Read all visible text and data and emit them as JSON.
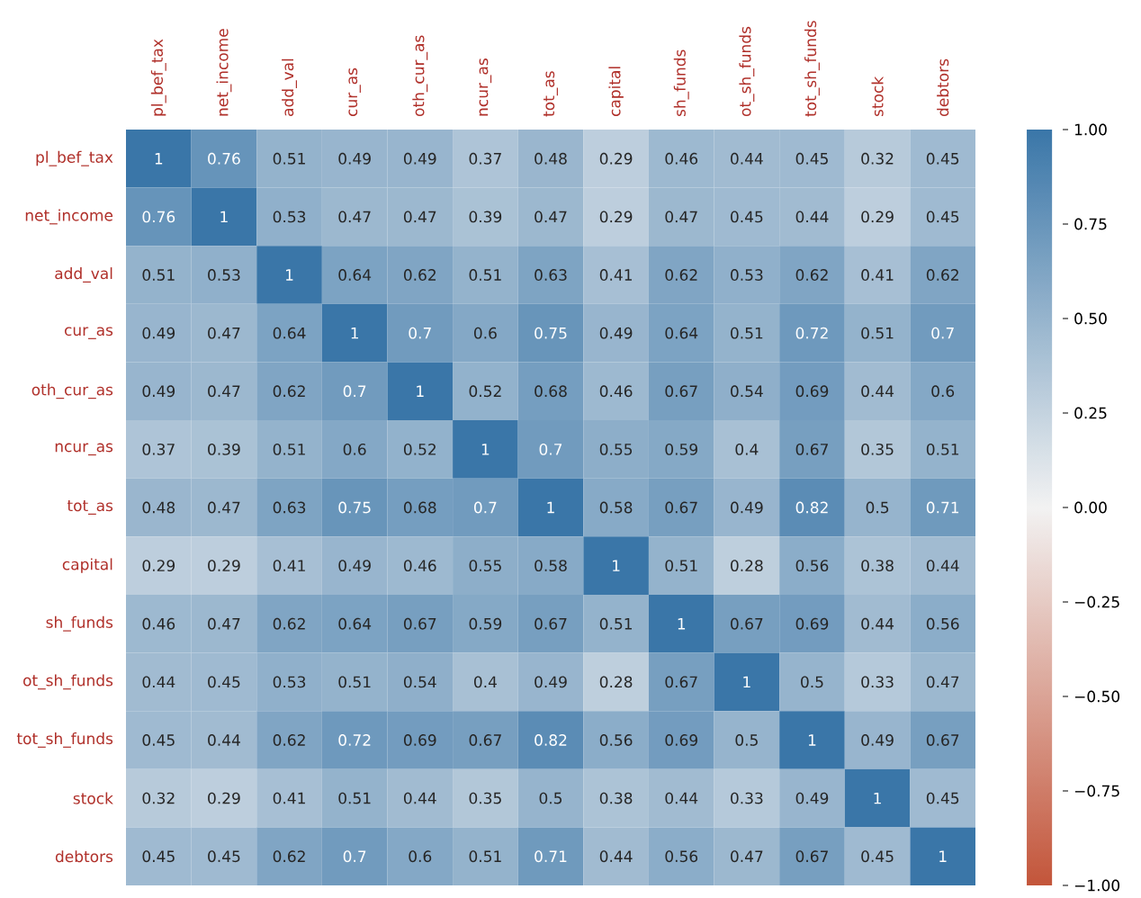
{
  "chart_data": {
    "type": "heatmap",
    "categories": [
      "pl_bef_tax",
      "net_income",
      "add_val",
      "cur_as",
      "oth_cur_as",
      "ncur_as",
      "tot_as",
      "capital",
      "sh_funds",
      "ot_sh_funds",
      "tot_sh_funds",
      "stock",
      "debtors"
    ],
    "y_categories": [
      "pl_bef_tax",
      "net_income",
      "add_val",
      "cur_as",
      "oth_cur_as",
      "ncur_as",
      "tot_as",
      "capital",
      "sh_funds",
      "ot_sh_funds",
      "tot_sh_funds",
      "stock",
      "debtors"
    ],
    "cells": [
      [
        1,
        0.76,
        0.51,
        0.49,
        0.49,
        0.37,
        0.48,
        0.29,
        0.46,
        0.44,
        0.45,
        0.32,
        0.45
      ],
      [
        0.76,
        1,
        0.53,
        0.47,
        0.47,
        0.39,
        0.47,
        0.29,
        0.47,
        0.45,
        0.44,
        0.29,
        0.45
      ],
      [
        0.51,
        0.53,
        1,
        0.64,
        0.62,
        0.51,
        0.63,
        0.41,
        0.62,
        0.53,
        0.62,
        0.41,
        0.62
      ],
      [
        0.49,
        0.47,
        0.64,
        1,
        0.7,
        0.6,
        0.75,
        0.49,
        0.64,
        0.51,
        0.72,
        0.51,
        0.7
      ],
      [
        0.49,
        0.47,
        0.62,
        0.7,
        1,
        0.52,
        0.68,
        0.46,
        0.67,
        0.54,
        0.69,
        0.44,
        0.6
      ],
      [
        0.37,
        0.39,
        0.51,
        0.6,
        0.52,
        1,
        0.7,
        0.55,
        0.59,
        0.4,
        0.67,
        0.35,
        0.51
      ],
      [
        0.48,
        0.47,
        0.63,
        0.75,
        0.68,
        0.7,
        1,
        0.58,
        0.67,
        0.49,
        0.82,
        0.5,
        0.71
      ],
      [
        0.29,
        0.29,
        0.41,
        0.49,
        0.46,
        0.55,
        0.58,
        1,
        0.51,
        0.28,
        0.56,
        0.38,
        0.44
      ],
      [
        0.46,
        0.47,
        0.62,
        0.64,
        0.67,
        0.59,
        0.67,
        0.51,
        1,
        0.67,
        0.69,
        0.44,
        0.56
      ],
      [
        0.44,
        0.45,
        0.53,
        0.51,
        0.54,
        0.4,
        0.49,
        0.28,
        0.67,
        1,
        0.5,
        0.33,
        0.47
      ],
      [
        0.45,
        0.44,
        0.62,
        0.72,
        0.69,
        0.67,
        0.82,
        0.56,
        0.69,
        0.5,
        1,
        0.49,
        0.67
      ],
      [
        0.32,
        0.29,
        0.41,
        0.51,
        0.44,
        0.35,
        0.5,
        0.38,
        0.44,
        0.33,
        0.49,
        1,
        0.45
      ],
      [
        0.45,
        0.45,
        0.62,
        0.7,
        0.6,
        0.51,
        0.71,
        0.44,
        0.56,
        0.47,
        0.67,
        0.45,
        1
      ]
    ],
    "data_labels": true,
    "clim": [
      -1,
      1
    ],
    "cticks": [
      {
        "value": -1,
        "label": "−1.00"
      },
      {
        "value": -0.75,
        "label": "−0.75"
      },
      {
        "value": -0.5,
        "label": "−0.50"
      },
      {
        "value": -0.25,
        "label": "−0.25"
      },
      {
        "value": 0,
        "label": "0.00"
      },
      {
        "value": 0.25,
        "label": "0.25"
      },
      {
        "value": 0.5,
        "label": "0.50"
      },
      {
        "value": 0.75,
        "label": "0.75"
      },
      {
        "value": 1,
        "label": "1.00"
      }
    ]
  }
}
